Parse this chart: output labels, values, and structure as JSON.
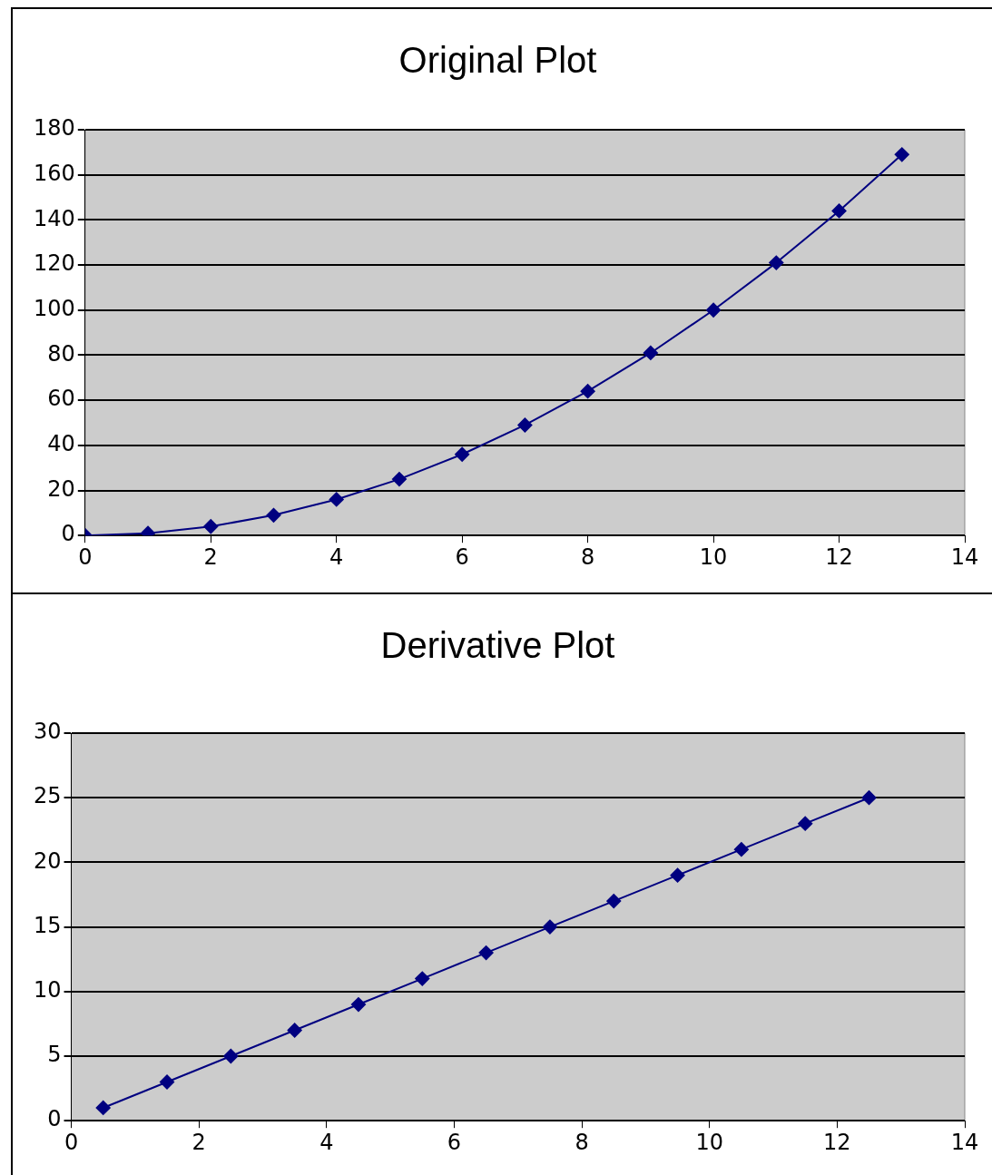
{
  "chart_data": [
    {
      "type": "line",
      "title": "Original Plot",
      "x": [
        0,
        1,
        2,
        3,
        4,
        5,
        6,
        7,
        8,
        9,
        10,
        11,
        12,
        13
      ],
      "values": [
        0,
        1,
        4,
        9,
        16,
        25,
        36,
        49,
        64,
        81,
        100,
        121,
        144,
        169
      ],
      "color": "#000080",
      "xlim": [
        0,
        14
      ],
      "xticks": [
        0,
        2,
        4,
        6,
        8,
        10,
        12,
        14
      ],
      "ylim": [
        0,
        180
      ],
      "yticks": [
        0,
        20,
        40,
        60,
        80,
        100,
        120,
        140,
        160,
        180
      ],
      "grid": "y",
      "legend": false,
      "marker": "diamond",
      "line_style": "solid"
    },
    {
      "type": "line",
      "title": "Derivative Plot",
      "x": [
        0.5,
        1.5,
        2.5,
        3.5,
        4.5,
        5.5,
        6.5,
        7.5,
        8.5,
        9.5,
        10.5,
        11.5,
        12.5
      ],
      "values": [
        1,
        3,
        5,
        7,
        9,
        11,
        13,
        15,
        17,
        19,
        21,
        23,
        25
      ],
      "color": "#000080",
      "xlim": [
        0,
        14
      ],
      "xticks": [
        0,
        2,
        4,
        6,
        8,
        10,
        12,
        14
      ],
      "ylim": [
        0,
        30
      ],
      "yticks": [
        0,
        5,
        10,
        15,
        20,
        25,
        30
      ],
      "grid": "y",
      "legend": false,
      "marker": "diamond",
      "line_style": "solid"
    }
  ]
}
